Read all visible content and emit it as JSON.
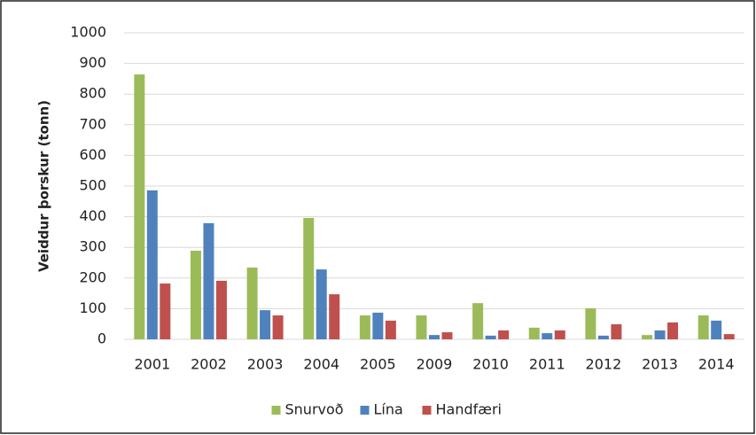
{
  "chart_data": {
    "type": "bar",
    "ylabel": "Veiddur þorskur (tonn)",
    "categories": [
      "2001",
      "2002",
      "2003",
      "2004",
      "2005",
      "2009",
      "2010",
      "2011",
      "2012",
      "2013",
      "2014"
    ],
    "series": [
      {
        "name": "Snurvoð",
        "color": "#9bbb59",
        "values": [
          864,
          289,
          234,
          396,
          78,
          78,
          118,
          38,
          101,
          14,
          78
        ]
      },
      {
        "name": "Lína",
        "color": "#4f81bd",
        "values": [
          486,
          379,
          95,
          228,
          87,
          14,
          12,
          20,
          12,
          29,
          61
        ]
      },
      {
        "name": "Handfæri",
        "color": "#c0504d",
        "values": [
          182,
          191,
          78,
          147,
          61,
          23,
          29,
          29,
          49,
          55,
          17
        ]
      }
    ],
    "ylim": [
      0,
      1000
    ],
    "yticks": [
      0,
      100,
      200,
      300,
      400,
      500,
      600,
      700,
      800,
      900,
      1000
    ],
    "grid": true,
    "legend": "bottom"
  }
}
